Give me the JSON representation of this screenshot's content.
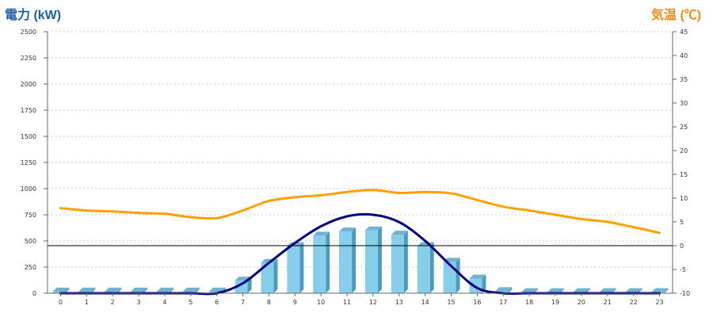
{
  "chart_data": {
    "type": "bar",
    "title": "",
    "y_left_label": "電力 (kW)",
    "y_right_label": "気温 (℃)",
    "y_left_ticks": [
      "0",
      "250",
      "500",
      "750",
      "1000",
      "1250",
      "1500",
      "1750",
      "2000",
      "2250",
      "2500"
    ],
    "y_right_ticks": [
      "-10",
      "-5",
      "0",
      "5",
      "10",
      "15",
      "20",
      "25",
      "30",
      "35",
      "40",
      "45"
    ],
    "ylim_left": [
      0,
      2500
    ],
    "ylim_right": [
      -10,
      45
    ],
    "grid": true,
    "categories": [
      "0",
      "1",
      "2",
      "3",
      "4",
      "5",
      "6",
      "7",
      "8",
      "9",
      "10",
      "11",
      "12",
      "13",
      "14",
      "15",
      "16",
      "17",
      "18",
      "19",
      "20",
      "21",
      "22",
      "23"
    ],
    "series": [
      {
        "kind": "bar",
        "axis": "left",
        "color": "#87ceeb",
        "values": [
          15,
          15,
          15,
          15,
          15,
          15,
          15,
          120,
          290,
          450,
          550,
          590,
          600,
          560,
          450,
          300,
          140,
          20,
          10,
          10,
          10,
          10,
          10,
          10
        ]
      },
      {
        "kind": "line",
        "axis": "left",
        "color": "#000080",
        "values": [
          0,
          0,
          0,
          0,
          0,
          0,
          0,
          95,
          290,
          480,
          640,
          735,
          750,
          680,
          500,
          260,
          50,
          0,
          0,
          0,
          0,
          0,
          0,
          0
        ]
      },
      {
        "kind": "line",
        "axis": "right",
        "color": "#ffa000",
        "values": [
          7.9,
          7.4,
          7.2,
          6.9,
          6.7,
          6.0,
          5.8,
          7.4,
          9.4,
          10.2,
          10.6,
          11.3,
          11.7,
          11.1,
          11.3,
          11.0,
          9.6,
          8.2,
          7.4,
          6.5,
          5.6,
          5.0,
          3.9,
          2.7
        ]
      }
    ],
    "reference_line": {
      "axis": "right",
      "value": 0,
      "color": "#000000"
    }
  }
}
